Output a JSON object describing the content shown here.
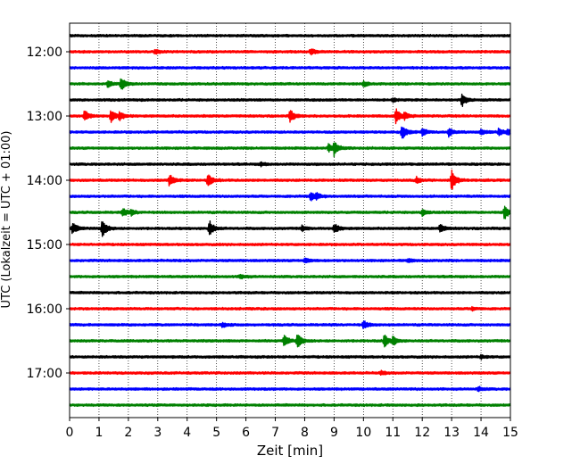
{
  "chart_data": {
    "type": "line",
    "xlabel": "Zeit  [min]",
    "ylabel": "UTC (Lokalzeit = UTC + 01:00)",
    "xlim": [
      0,
      15
    ],
    "xticks": [
      0,
      1,
      2,
      3,
      4,
      5,
      6,
      7,
      8,
      9,
      10,
      11,
      12,
      13,
      14,
      15
    ],
    "vertical_grid": "dotted",
    "row_minutes": 15,
    "start_time": "11:45",
    "ytick_labels": [
      "12:00",
      "13:00",
      "14:00",
      "15:00",
      "16:00",
      "17:00"
    ],
    "trace_colors": [
      "#000000",
      "#ff0000",
      "#0000ff",
      "#008000"
    ],
    "rows": [
      {
        "start": "11:45",
        "color": "#000000",
        "events": []
      },
      {
        "start": "12:00",
        "color": "#ff0000",
        "events": [
          {
            "t": 8.2,
            "amp": 0.35
          },
          {
            "t": 2.9,
            "amp": 0.25
          }
        ]
      },
      {
        "start": "12:15",
        "color": "#0000ff",
        "events": []
      },
      {
        "start": "12:30",
        "color": "#008000",
        "events": [
          {
            "t": 1.3,
            "amp": 0.4
          },
          {
            "t": 1.75,
            "amp": 0.9
          },
          {
            "t": 10.0,
            "amp": 0.3
          }
        ]
      },
      {
        "start": "12:45",
        "color": "#000000",
        "events": [
          {
            "t": 13.35,
            "amp": 0.8
          },
          {
            "t": 11.0,
            "amp": 0.2
          }
        ]
      },
      {
        "start": "13:00",
        "color": "#ff0000",
        "events": [
          {
            "t": 0.5,
            "amp": 0.7
          },
          {
            "t": 1.4,
            "amp": 0.9
          },
          {
            "t": 1.7,
            "amp": 0.5
          },
          {
            "t": 7.5,
            "amp": 0.8
          },
          {
            "t": 11.1,
            "amp": 0.9
          },
          {
            "t": 11.4,
            "amp": 0.4
          }
        ]
      },
      {
        "start": "13:15",
        "color": "#0000ff",
        "events": [
          {
            "t": 11.3,
            "amp": 1.0
          },
          {
            "t": 12.0,
            "amp": 0.5
          },
          {
            "t": 12.9,
            "amp": 0.5
          },
          {
            "t": 14.0,
            "amp": 0.35
          },
          {
            "t": 14.6,
            "amp": 0.45
          },
          {
            "t": 14.9,
            "amp": 0.3
          }
        ]
      },
      {
        "start": "13:30",
        "color": "#008000",
        "events": [
          {
            "t": 8.8,
            "amp": 0.5
          },
          {
            "t": 9.0,
            "amp": 0.9
          }
        ]
      },
      {
        "start": "13:45",
        "color": "#000000",
        "events": [
          {
            "t": 6.5,
            "amp": 0.2
          }
        ]
      },
      {
        "start": "14:00",
        "color": "#ff0000",
        "events": [
          {
            "t": 3.4,
            "amp": 0.8
          },
          {
            "t": 4.7,
            "amp": 0.8
          },
          {
            "t": 11.8,
            "amp": 0.4
          },
          {
            "t": 13.0,
            "amp": 1.3
          }
        ]
      },
      {
        "start": "14:15",
        "color": "#0000ff",
        "events": [
          {
            "t": 8.2,
            "amp": 0.5
          },
          {
            "t": 8.4,
            "amp": 0.3
          }
        ]
      },
      {
        "start": "14:30",
        "color": "#008000",
        "events": [
          {
            "t": 1.8,
            "amp": 0.5
          },
          {
            "t": 2.1,
            "amp": 0.3
          },
          {
            "t": 12.0,
            "amp": 0.4
          },
          {
            "t": 14.8,
            "amp": 0.9
          }
        ]
      },
      {
        "start": "14:45",
        "color": "#000000",
        "events": [
          {
            "t": 0.1,
            "amp": 0.7
          },
          {
            "t": 1.1,
            "amp": 1.2
          },
          {
            "t": 4.75,
            "amp": 1.0
          },
          {
            "t": 7.9,
            "amp": 0.35
          },
          {
            "t": 9.0,
            "amp": 0.6
          },
          {
            "t": 12.6,
            "amp": 0.5
          }
        ]
      },
      {
        "start": "15:00",
        "color": "#ff0000",
        "events": []
      },
      {
        "start": "15:15",
        "color": "#0000ff",
        "events": [
          {
            "t": 8.0,
            "amp": 0.3
          },
          {
            "t": 11.5,
            "amp": 0.2
          }
        ]
      },
      {
        "start": "15:30",
        "color": "#008000",
        "events": [
          {
            "t": 5.8,
            "amp": 0.25
          }
        ]
      },
      {
        "start": "15:45",
        "color": "#000000",
        "events": []
      },
      {
        "start": "16:00",
        "color": "#ff0000",
        "events": [
          {
            "t": 13.7,
            "amp": 0.2
          }
        ]
      },
      {
        "start": "16:15",
        "color": "#0000ff",
        "events": [
          {
            "t": 5.2,
            "amp": 0.3
          },
          {
            "t": 10.0,
            "amp": 0.5
          }
        ]
      },
      {
        "start": "16:30",
        "color": "#008000",
        "events": [
          {
            "t": 7.3,
            "amp": 0.7
          },
          {
            "t": 7.75,
            "amp": 0.9
          },
          {
            "t": 10.7,
            "amp": 0.8
          },
          {
            "t": 11.0,
            "amp": 0.5
          }
        ]
      },
      {
        "start": "16:45",
        "color": "#000000",
        "events": [
          {
            "t": 14.0,
            "amp": 0.2
          }
        ]
      },
      {
        "start": "17:00",
        "color": "#ff0000",
        "events": [
          {
            "t": 10.6,
            "amp": 0.2
          }
        ]
      },
      {
        "start": "17:15",
        "color": "#0000ff",
        "events": [
          {
            "t": 13.9,
            "amp": 0.25
          }
        ]
      },
      {
        "start": "17:30",
        "color": "#008000",
        "events": []
      }
    ]
  }
}
